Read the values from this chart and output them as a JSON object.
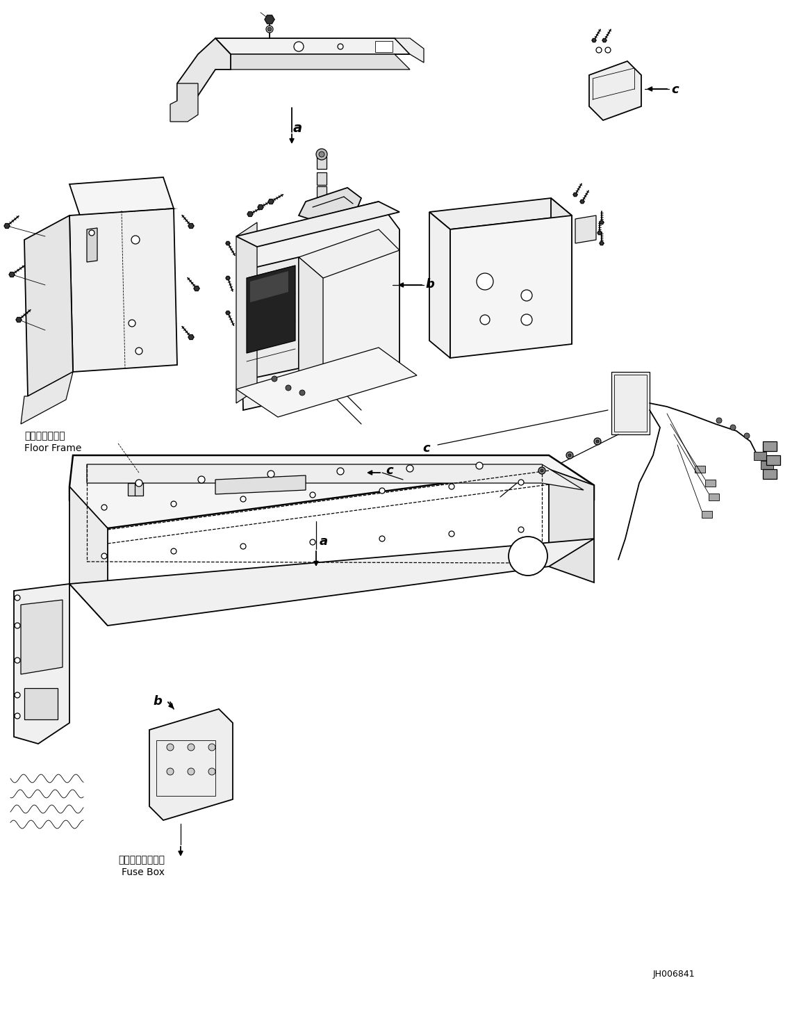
{
  "figure_width": 11.63,
  "figure_height": 14.66,
  "dpi": 100,
  "bg_color": "#ffffff",
  "line_color": "#000000",
  "part_id": "JH006841",
  "labels": {
    "floor_frame_jp": "フロアフレーム",
    "floor_frame_en": "Floor Frame",
    "fuse_box_jp": "フューズボックス",
    "fuse_box_en": "Fuse Box"
  }
}
